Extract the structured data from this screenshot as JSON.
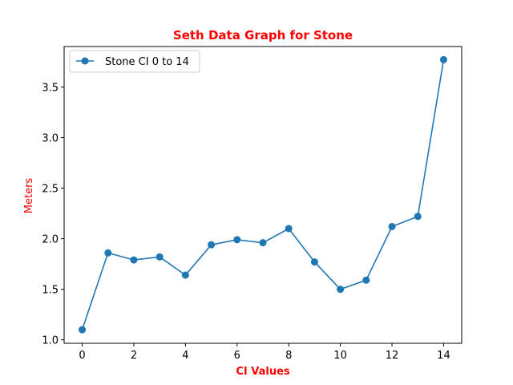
{
  "chart_data": {
    "type": "line",
    "title": "Seth Data Graph for Stone",
    "xlabel": "CI Values",
    "ylabel": "Meters",
    "title_color": "#ff0000",
    "label_color": "#ff0000",
    "x": [
      0,
      1,
      2,
      3,
      4,
      5,
      6,
      7,
      8,
      9,
      10,
      11,
      12,
      13,
      14
    ],
    "series": [
      {
        "name": "Stone CI 0 to 14",
        "color": "#1f77b4",
        "marker": "circle",
        "values": [
          1.1,
          1.86,
          1.79,
          1.82,
          1.64,
          1.94,
          1.99,
          1.96,
          2.1,
          1.77,
          1.5,
          1.59,
          2.12,
          2.22,
          3.77
        ]
      }
    ],
    "xlim": [
      -0.7,
      14.7
    ],
    "ylim": [
      0.966,
      3.9
    ],
    "xticks": [
      0,
      2,
      4,
      6,
      8,
      10,
      12,
      14
    ],
    "yticks": [
      1.0,
      1.5,
      2.0,
      2.5,
      3.0,
      3.5
    ],
    "grid": false,
    "legend_position": "upper-left"
  }
}
